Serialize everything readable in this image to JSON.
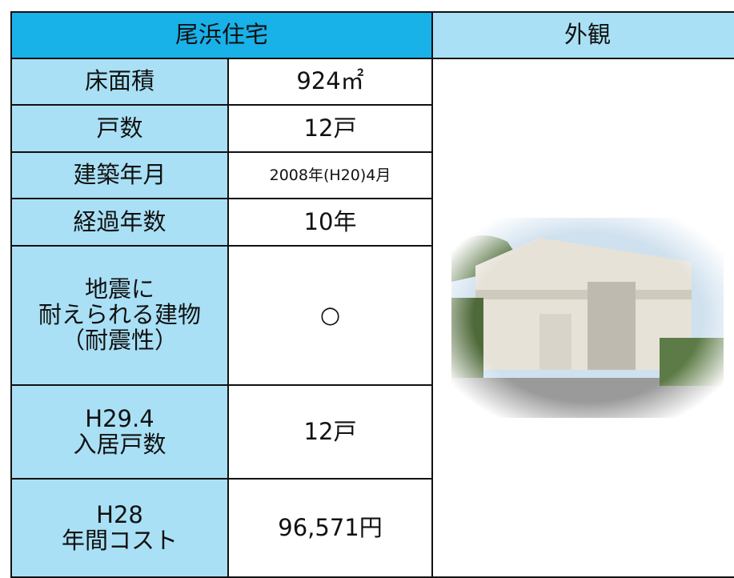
{
  "header": {
    "title": "尾浜住宅",
    "photo_label": "外観"
  },
  "rows": [
    {
      "label": [
        "床面積"
      ],
      "value": "924㎡"
    },
    {
      "label": [
        "戸数"
      ],
      "value": "12戸"
    },
    {
      "label": [
        "建築年月"
      ],
      "value": "2008年(H20)4月"
    },
    {
      "label": [
        "経過年数"
      ],
      "value": "10年"
    },
    {
      "label": [
        "地震に",
        "耐えられる建物",
        "（耐震性）"
      ],
      "value": "○"
    },
    {
      "label": [
        "H29.4",
        "入居戸数"
      ],
      "value": "12戸"
    },
    {
      "label": [
        "H28",
        "年間コスト"
      ],
      "value": "96,571円"
    }
  ]
}
